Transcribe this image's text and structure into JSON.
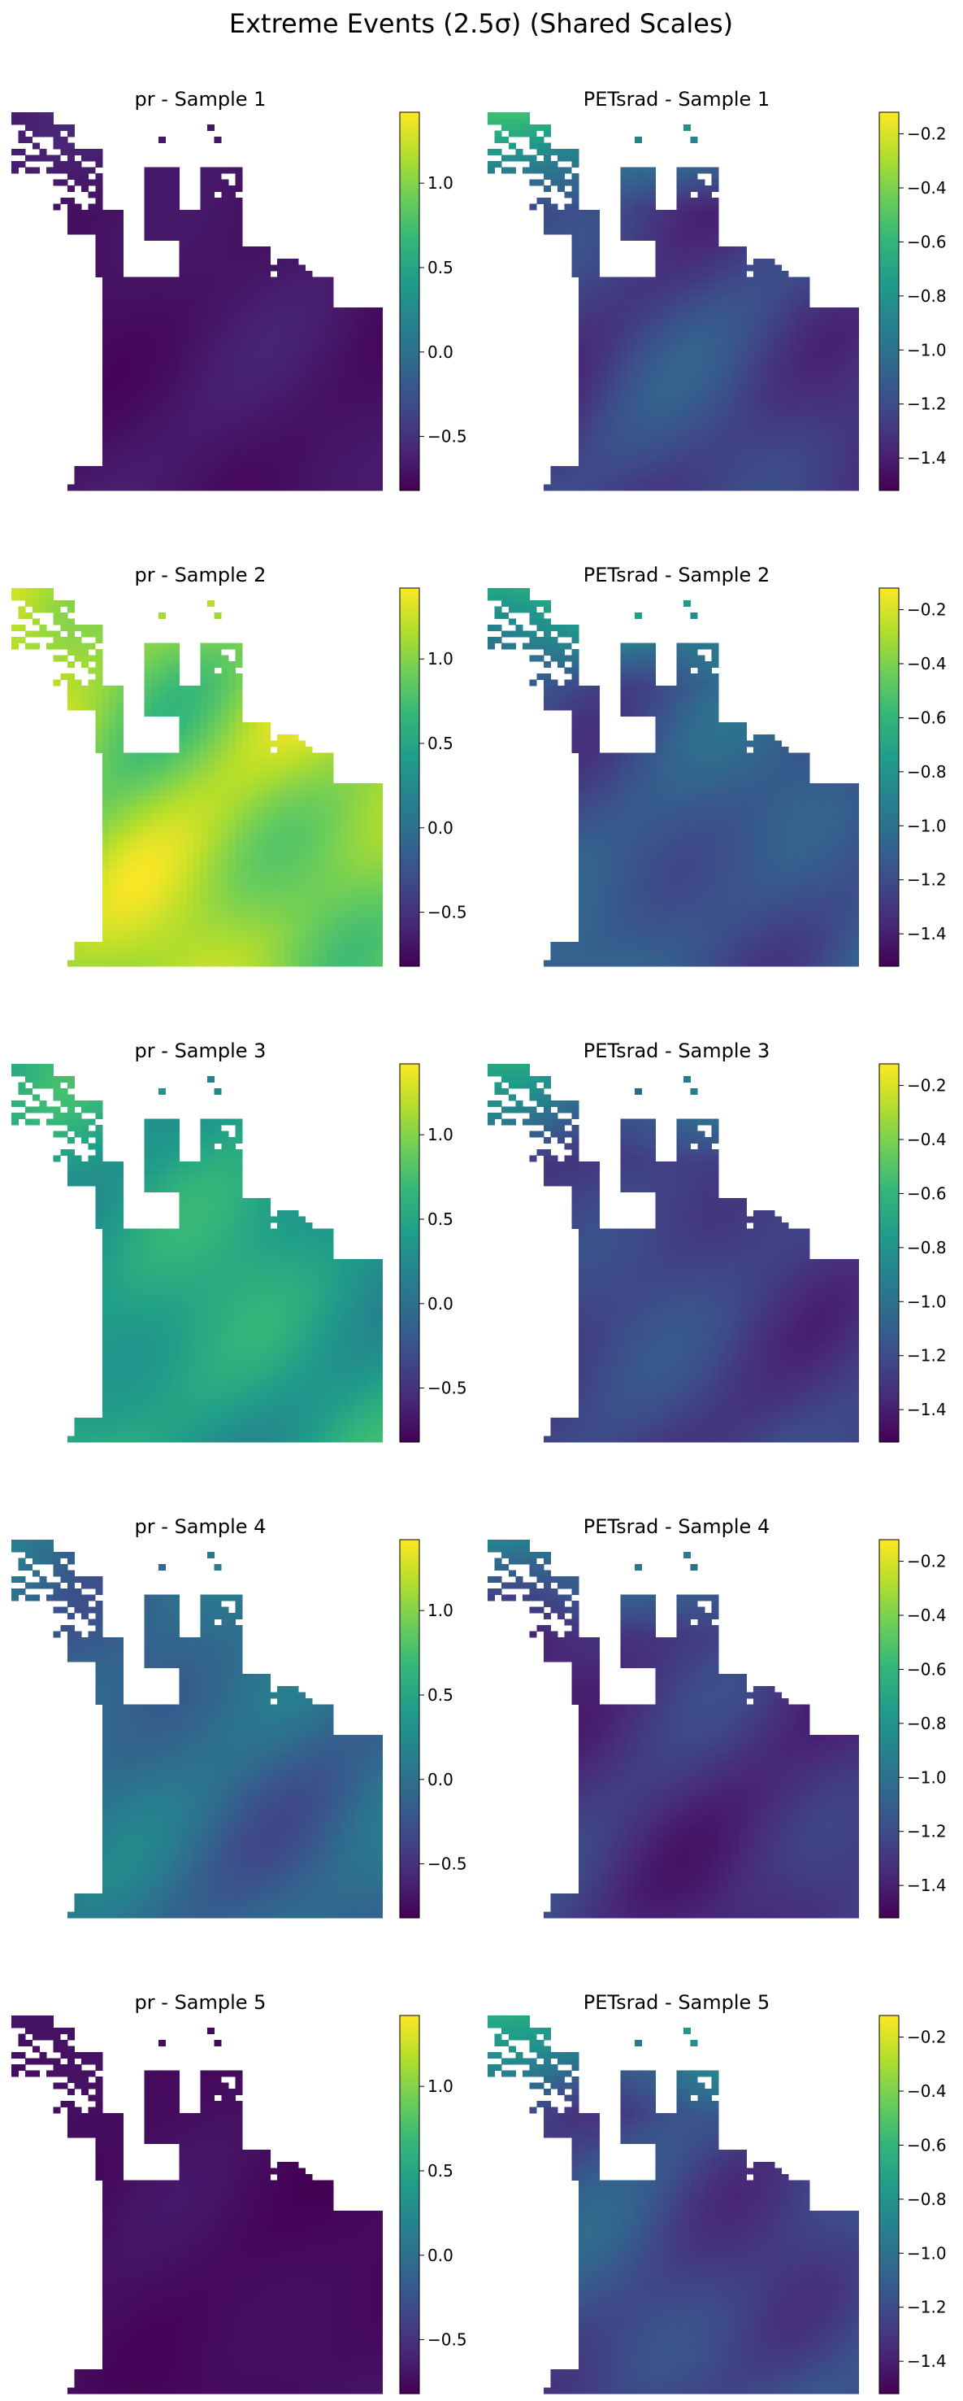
{
  "figure": {
    "title": "Extreme Events (2.5σ) (Shared Scales)"
  },
  "chart_data": {
    "type": "heatmap",
    "colormap": "viridis",
    "colormap_stops": [
      "#440154",
      "#482878",
      "#3e4a89",
      "#31688e",
      "#26828e",
      "#1f9e89",
      "#35b779",
      "#6ece58",
      "#b5de2b",
      "#fde725"
    ],
    "variables": [
      {
        "name": "pr",
        "clim": [
          -0.82,
          1.42
        ],
        "ticks": [
          -0.5,
          0.0,
          0.5,
          1.0
        ],
        "tick_labels": [
          "−0.5",
          "0.0",
          "0.5",
          "1.0"
        ]
      },
      {
        "name": "PETsrad",
        "clim": [
          -1.52,
          -0.12
        ],
        "ticks": [
          -1.4,
          -1.2,
          -1.0,
          -0.8,
          -0.6,
          -0.4,
          -0.2
        ],
        "tick_labels": [
          "−1.4",
          "−1.2",
          "−1.0",
          "−0.8",
          "−0.6",
          "−0.4",
          "−0.2"
        ]
      }
    ],
    "panels": [
      {
        "title": "pr - Sample 1",
        "variable": "pr",
        "mean": -0.7,
        "spread": 0.07,
        "north_boost": 0.05
      },
      {
        "title": "PETsrad - Sample 1",
        "variable": "PETsrad",
        "mean": -1.25,
        "spread": 0.12,
        "north_boost": 0.55
      },
      {
        "title": "pr - Sample 2",
        "variable": "pr",
        "mean": 1.05,
        "spread": 0.28,
        "north_boost": 0.1
      },
      {
        "title": "PETsrad - Sample 2",
        "variable": "PETsrad",
        "mean": -1.15,
        "spread": 0.12,
        "north_boost": 0.5
      },
      {
        "title": "pr - Sample 3",
        "variable": "pr",
        "mean": 0.45,
        "spread": 0.22,
        "north_boost": 0.05
      },
      {
        "title": "PETsrad - Sample 3",
        "variable": "PETsrad",
        "mean": -1.25,
        "spread": 0.1,
        "north_boost": 0.45
      },
      {
        "title": "pr - Sample 4",
        "variable": "pr",
        "mean": -0.05,
        "spread": 0.2,
        "north_boost": 0.05
      },
      {
        "title": "PETsrad - Sample 4",
        "variable": "PETsrad",
        "mean": -1.32,
        "spread": 0.1,
        "north_boost": 0.4
      },
      {
        "title": "pr - Sample 5",
        "variable": "pr",
        "mean": -0.75,
        "spread": 0.05,
        "north_boost": 0.03
      },
      {
        "title": "PETsrad - Sample 5",
        "variable": "PETsrad",
        "mean": -1.22,
        "spread": 0.13,
        "north_boost": 0.55
      }
    ]
  }
}
